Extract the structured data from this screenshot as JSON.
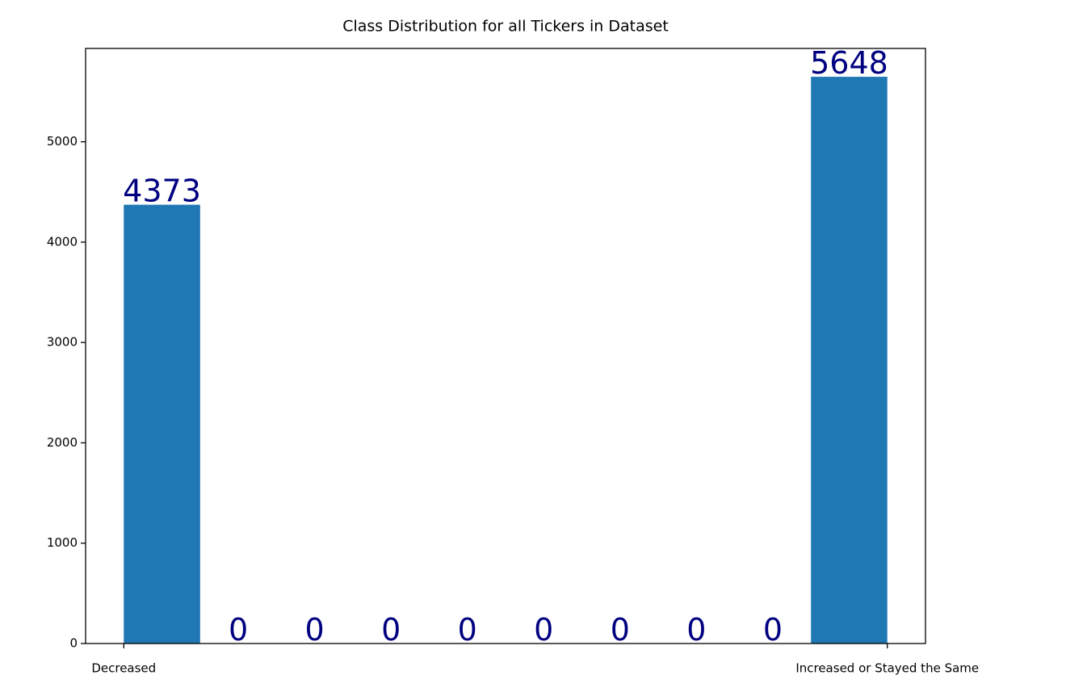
{
  "chart_data": {
    "type": "histogram",
    "title": "Class Distribution for all Tickers in Dataset",
    "bins": [
      0,
      0.1,
      0.2,
      0.3,
      0.4,
      0.5,
      0.6,
      0.7,
      0.8,
      0.9,
      1
    ],
    "counts": [
      4373,
      0,
      0,
      0,
      0,
      0,
      0,
      0,
      0,
      5648
    ],
    "color": "#1f77b4",
    "label_color": "#000080",
    "xlim": [
      -0.05,
      1.05
    ],
    "xticks": [
      {
        "value": 0,
        "label": "Decreased"
      },
      {
        "value": 1,
        "label": "Increased or Stayed the Same"
      }
    ],
    "ylim": [
      0,
      5930.4
    ],
    "yticks": [
      0,
      1000,
      2000,
      3000,
      4000,
      5000
    ],
    "grid": false
  }
}
